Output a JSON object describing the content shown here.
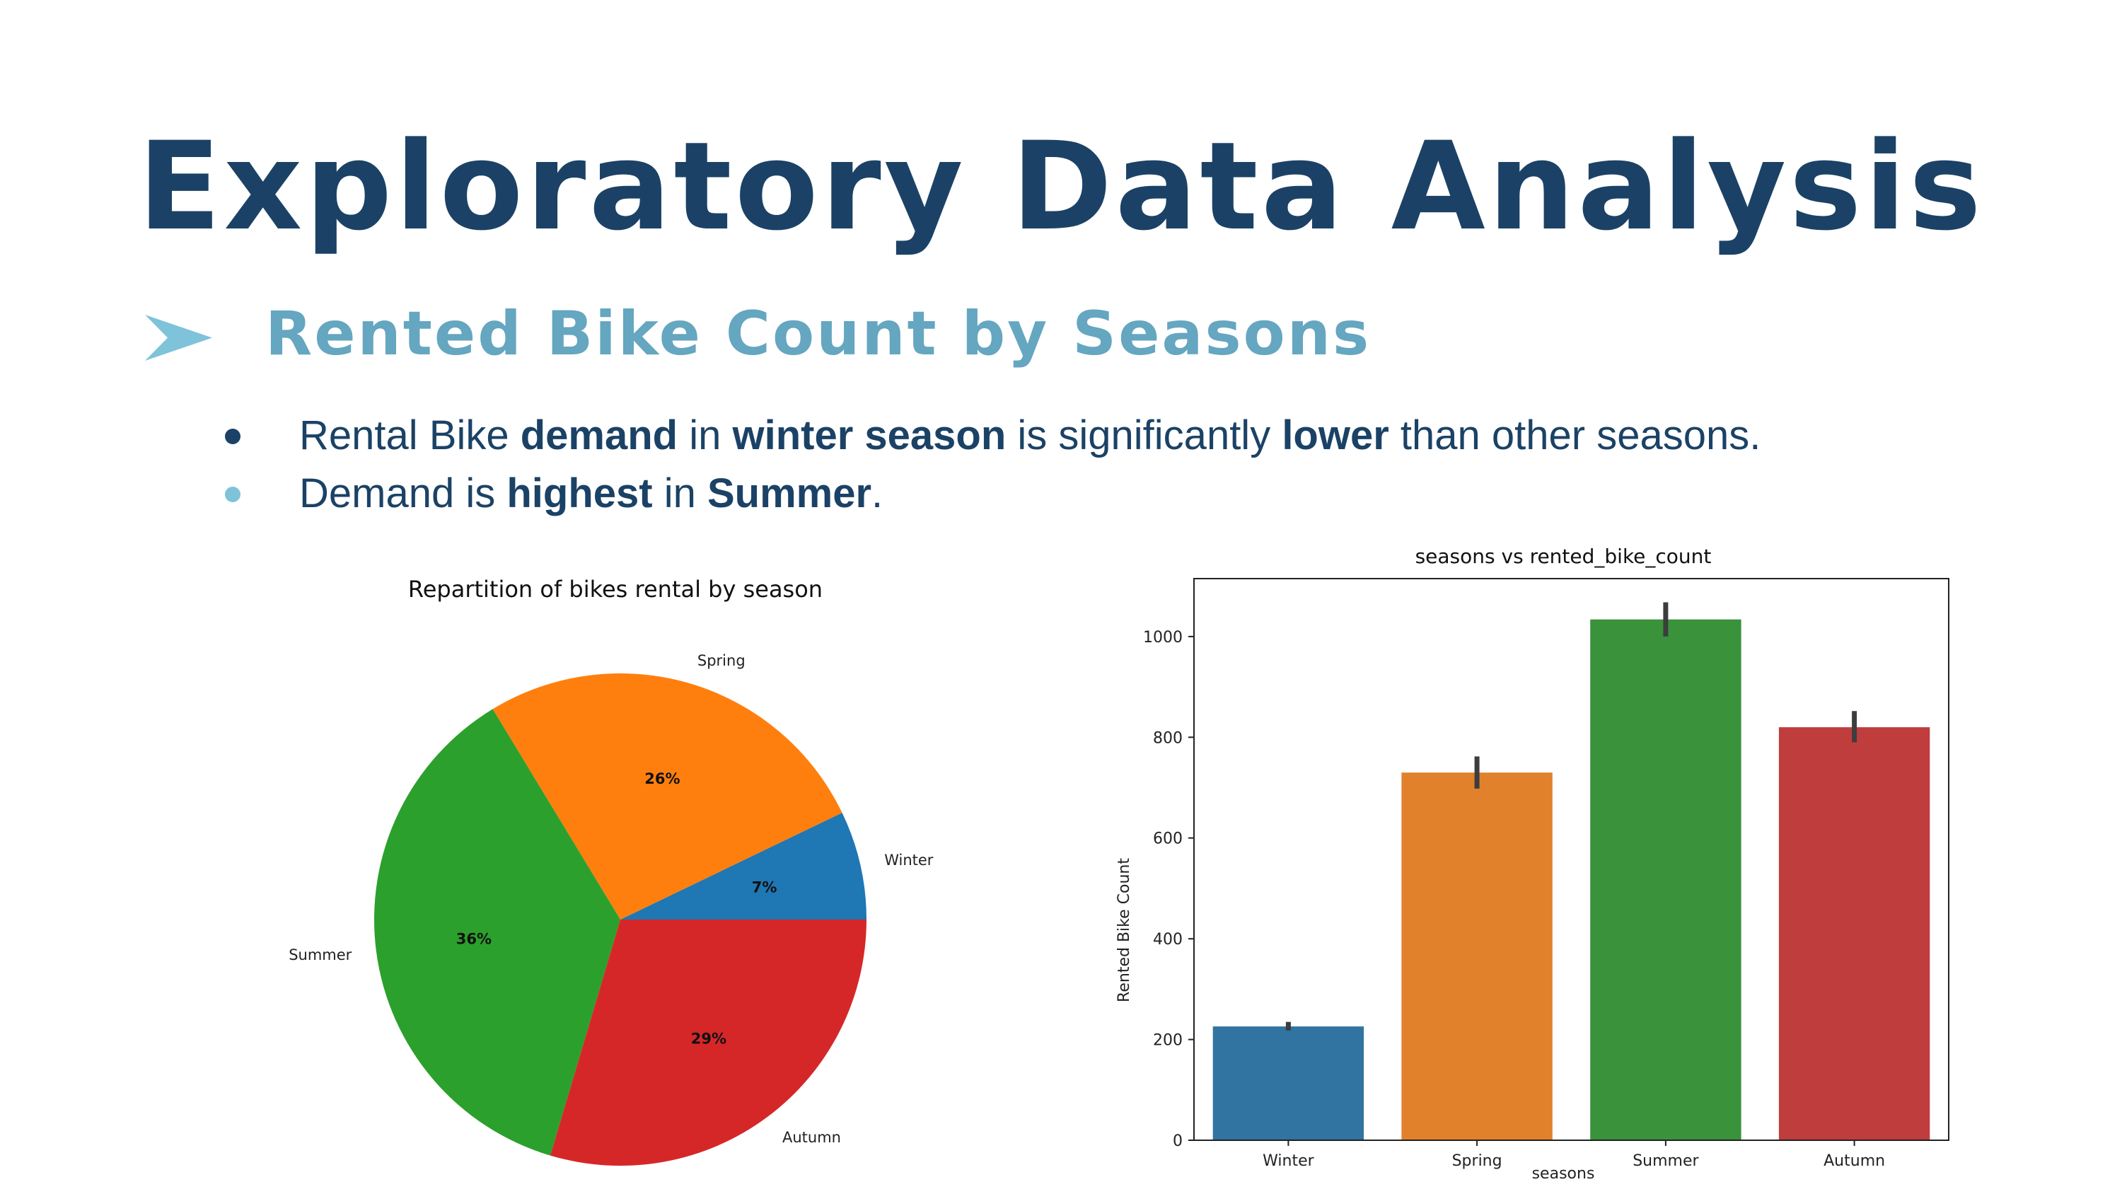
{
  "header": {
    "title": "Exploratory Data Analysis",
    "subtitle": "Rented Bike Count by Seasons"
  },
  "bullets": [
    {
      "dot_color": "#1b4266",
      "parts": [
        {
          "text": "Rental Bike ",
          "bold": false
        },
        {
          "text": "demand",
          "bold": true
        },
        {
          "text": " in ",
          "bold": false
        },
        {
          "text": "winter season",
          "bold": true
        },
        {
          "text": " is significantly ",
          "bold": false
        },
        {
          "text": "lower",
          "bold": true
        },
        {
          "text": " than other seasons.",
          "bold": false
        }
      ]
    },
    {
      "dot_color": "#7ec3d9",
      "parts": [
        {
          "text": "Demand is ",
          "bold": false
        },
        {
          "text": "highest",
          "bold": true
        },
        {
          "text": " in ",
          "bold": false
        },
        {
          "text": "Summer",
          "bold": true
        },
        {
          "text": ".",
          "bold": false
        }
      ]
    }
  ],
  "colors": {
    "title": "#1b4266",
    "subtitle": "#65a6c0",
    "arrow": "#7ec3d9"
  },
  "chart_data": [
    {
      "type": "pie",
      "title": "Repartition of bikes rental by season",
      "labels": [
        "Winter",
        "Spring",
        "Summer",
        "Autumn"
      ],
      "values": [
        7,
        26,
        36,
        29
      ],
      "value_labels": [
        "7%",
        "26%",
        "36%",
        "29%"
      ],
      "colors": [
        "#1f77b4",
        "#ff7f0e",
        "#2ca02c",
        "#d62728"
      ],
      "start_angle": 0,
      "direction": "counterclockwise"
    },
    {
      "type": "bar",
      "title": "seasons vs rented_bike_count",
      "xlabel": "seasons",
      "ylabel": "Rented Bike Count",
      "categories": [
        "Winter",
        "Spring",
        "Summer",
        "Autumn"
      ],
      "values": [
        226,
        730,
        1034,
        820
      ],
      "error_low": [
        218,
        698,
        1000,
        790
      ],
      "error_high": [
        235,
        762,
        1068,
        852
      ],
      "colors": [
        "#3274a1",
        "#e1812c",
        "#3a923a",
        "#c03d3e"
      ],
      "ylim": [
        0,
        1115
      ],
      "yticks": [
        0,
        200,
        400,
        600,
        800,
        1000
      ],
      "error_color": "#3d3d3d"
    }
  ]
}
